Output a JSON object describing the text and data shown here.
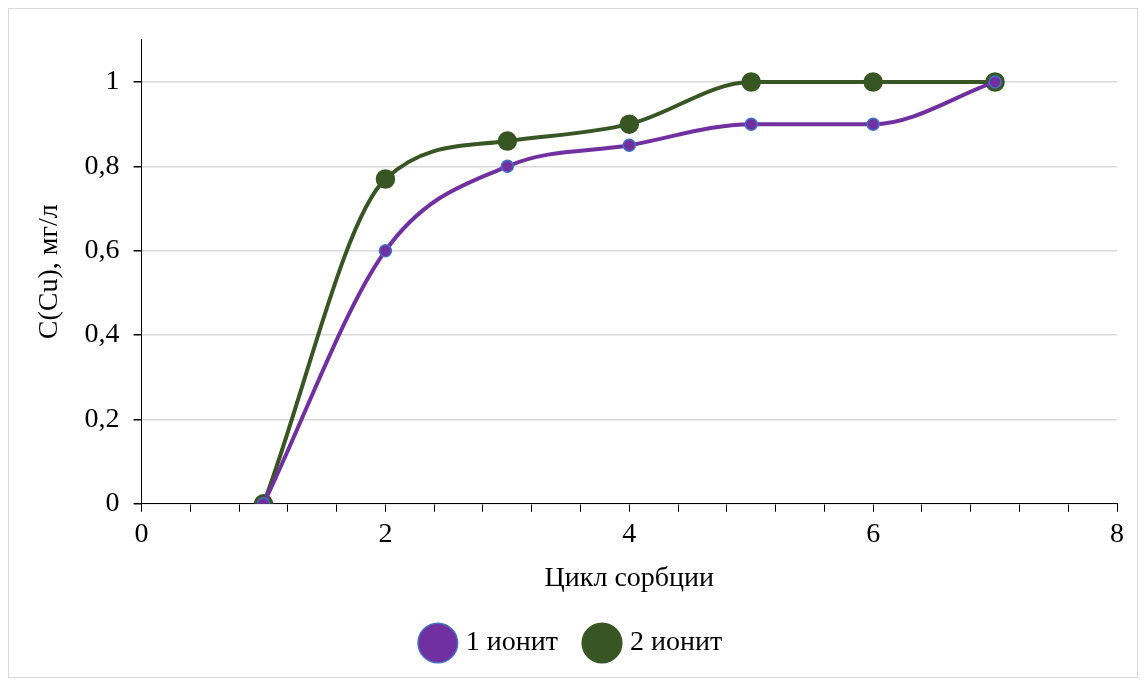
{
  "chart_data": {
    "type": "line",
    "xlabel": "Цикл сорбции",
    "ylabel": "C(Cu), мг/л",
    "x": [
      1,
      2,
      3,
      4,
      5,
      6,
      7
    ],
    "series": [
      {
        "name": "1 ионит",
        "color": "#7030a0",
        "values": [
          0,
          0.6,
          0.8,
          0.85,
          0.9,
          0.9,
          1
        ]
      },
      {
        "name": "2 ионит",
        "color": "#375623",
        "values": [
          0,
          0.77,
          0.86,
          0.9,
          1,
          1,
          1
        ]
      }
    ],
    "xlim": [
      0,
      8
    ],
    "xticks": [
      0,
      {
        "value": 0.4,
        "label": null
      },
      {
        "value": 0.8,
        "label": null
      },
      {
        "value": 1.2,
        "label": null
      },
      {
        "value": 1.6,
        "label": null
      },
      2,
      {
        "value": 2.4,
        "label": null
      },
      {
        "value": 2.8,
        "label": null
      },
      {
        "value": 3.2,
        "label": null
      },
      {
        "value": 3.6,
        "label": null
      },
      4,
      {
        "value": 4.4,
        "label": null
      },
      {
        "value": 4.8,
        "label": null
      },
      {
        "value": 5.2,
        "label": null
      },
      {
        "value": 5.6,
        "label": null
      },
      6,
      {
        "value": 6.4,
        "label": null
      },
      {
        "value": 6.8,
        "label": null
      },
      {
        "value": 7.2,
        "label": null
      },
      {
        "value": 7.6,
        "label": null
      },
      8
    ],
    "ylim": [
      0,
      1.1
    ],
    "yticks": [
      0,
      {
        "value": 0.2,
        "label": "0,2"
      },
      {
        "value": 0.4,
        "label": "0,4"
      },
      {
        "value": 0.6,
        "label": "0,6"
      },
      {
        "value": 0.8,
        "label": "0,8"
      },
      1
    ],
    "grid": "y",
    "legend": "bottom",
    "marker": "circle",
    "line_style": "solid"
  }
}
